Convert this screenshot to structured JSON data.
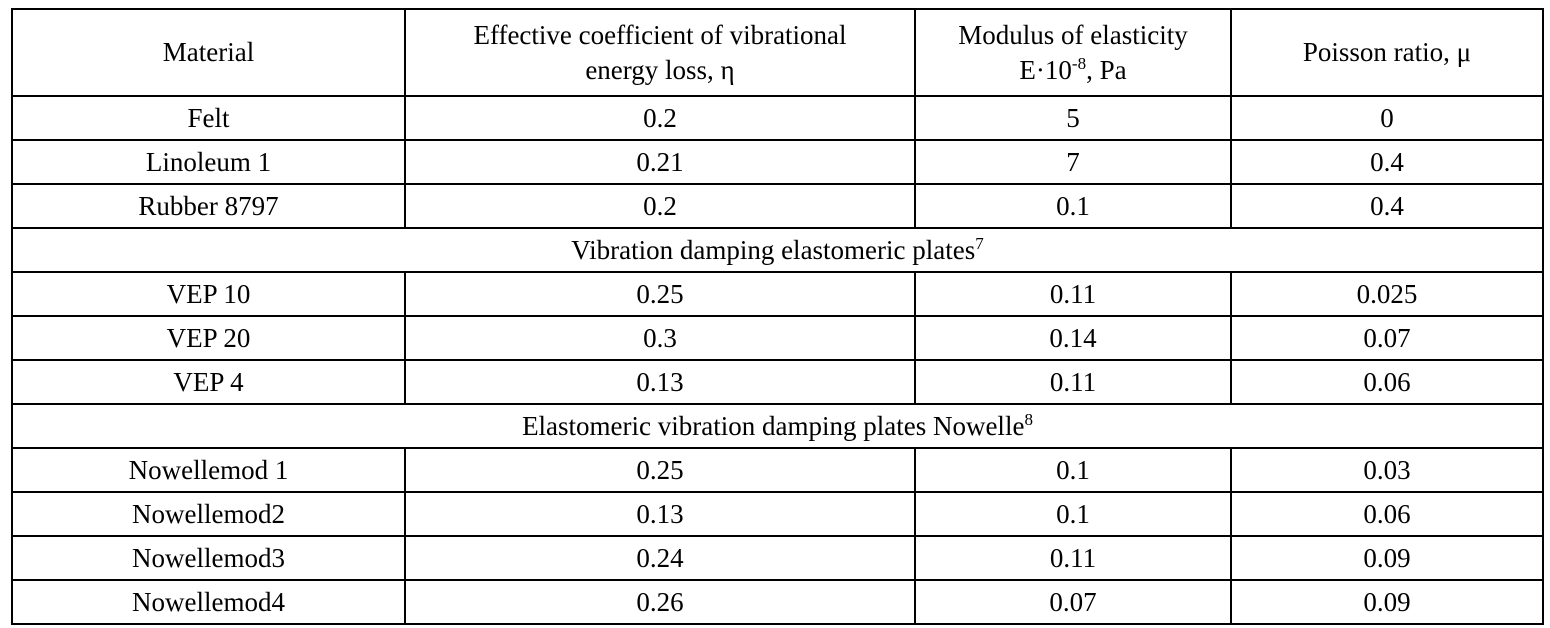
{
  "table": {
    "headers": {
      "material": "Material",
      "loss_line1": "Effective coefficient of vibrational",
      "loss_line2": "energy loss, η",
      "modulus_line1": "Modulus of elasticity",
      "modulus_prefix": "E·10",
      "modulus_exp": "-8",
      "modulus_suffix": ", Pa",
      "poisson": "Poisson ratio, μ"
    },
    "group1_rows": [
      {
        "material": "Felt",
        "loss": "0.2",
        "modulus": "5",
        "poisson": "0"
      },
      {
        "material": "Linoleum 1",
        "loss": "0.21",
        "modulus": "7",
        "poisson": "0.4"
      },
      {
        "material": "Rubber 8797",
        "loss": "0.2",
        "modulus": "0.1",
        "poisson": "0.4"
      }
    ],
    "group2": {
      "title": "Vibration damping elastomeric plates",
      "footnote": "7",
      "rows": [
        {
          "material": "VEP 10",
          "loss": "0.25",
          "modulus": "0.11",
          "poisson": "0.025"
        },
        {
          "material": "VEP 20",
          "loss": "0.3",
          "modulus": "0.14",
          "poisson": "0.07"
        },
        {
          "material": "VEP 4",
          "loss": "0.13",
          "modulus": "0.11",
          "poisson": "0.06"
        }
      ]
    },
    "group3": {
      "title": "Elastomeric vibration damping plates Nowelle",
      "footnote": "8",
      "rows": [
        {
          "material": "Nowellemod 1",
          "loss": "0.25",
          "modulus": "0.1",
          "poisson": "0.03"
        },
        {
          "material": "Nowellemod2",
          "loss": "0.13",
          "modulus": "0.1",
          "poisson": "0.06"
        },
        {
          "material": "Nowellemod3",
          "loss": "0.24",
          "modulus": "0.11",
          "poisson": "0.09"
        },
        {
          "material": "Nowellemod4",
          "loss": "0.26",
          "modulus": "0.07",
          "poisson": "0.09"
        }
      ]
    }
  }
}
